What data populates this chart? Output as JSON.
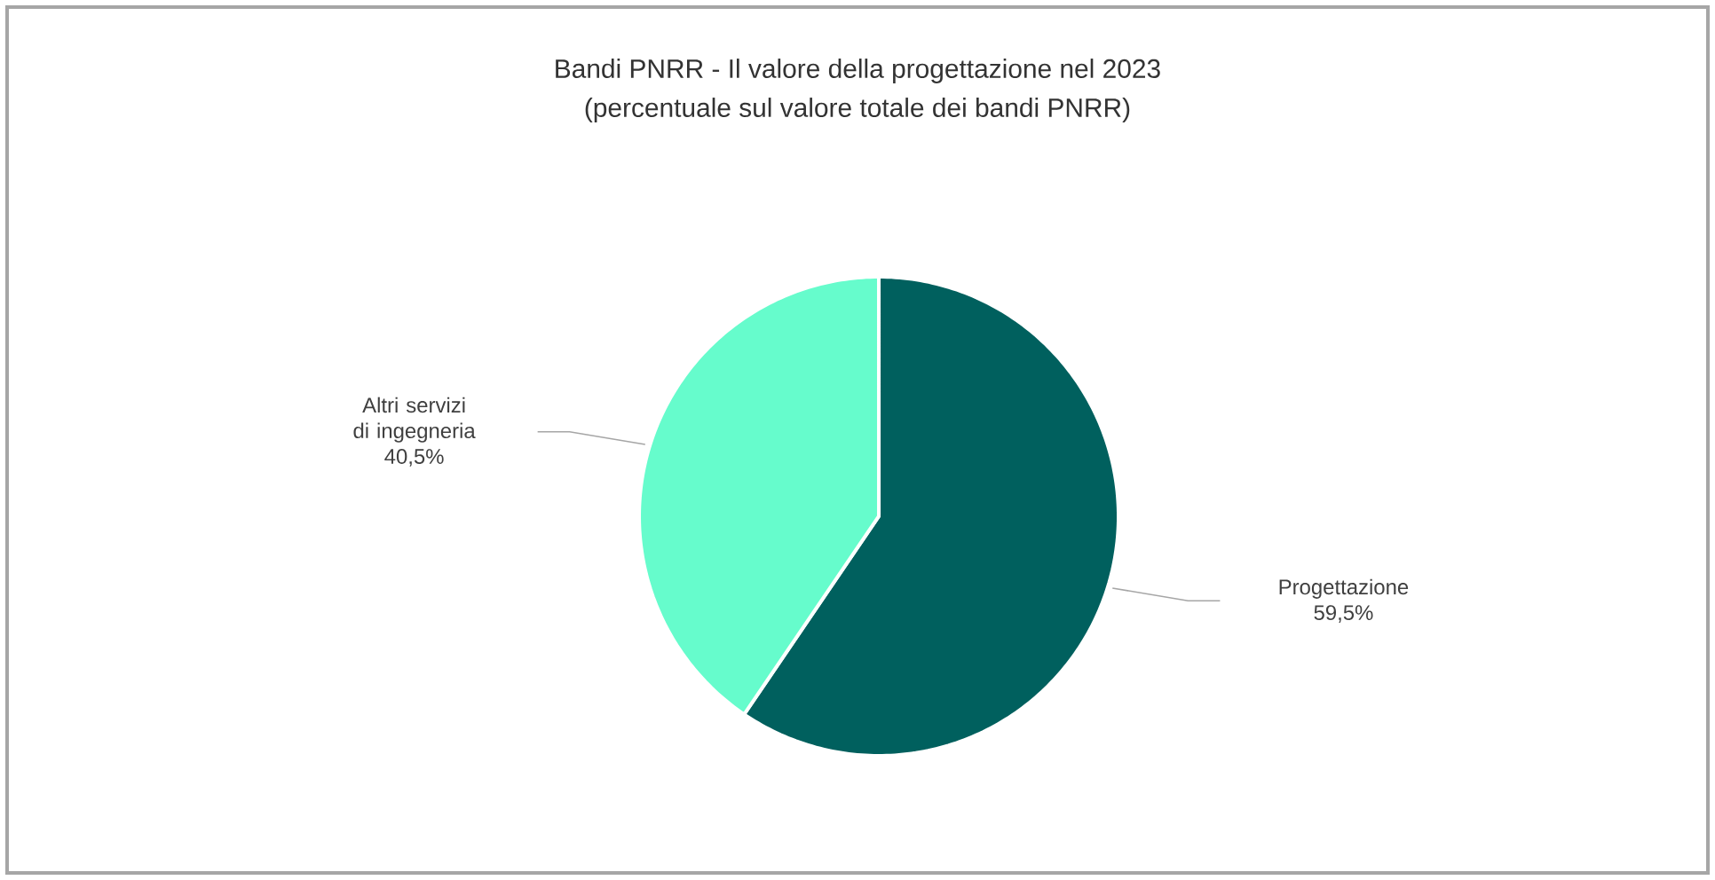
{
  "chart_data": {
    "type": "pie",
    "title": "Bandi PNRR - Il valore della progettazione nel 2023",
    "subtitle": "(percentuale sul valore totale dei bandi PNRR)",
    "categories": [
      "Progettazione",
      "Altri servizi di ingegneria"
    ],
    "values": [
      59.5,
      40.5
    ],
    "colors": [
      "#00605e",
      "#66fccc"
    ],
    "value_labels": [
      "59,5%",
      "40,5%"
    ]
  }
}
